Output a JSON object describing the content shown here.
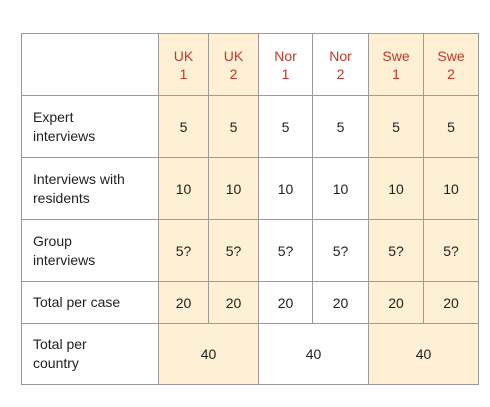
{
  "table": {
    "columns": [
      {
        "line1": "UK",
        "line2": "1",
        "highlight": true
      },
      {
        "line1": "UK",
        "line2": "2",
        "highlight": true
      },
      {
        "line1": "Nor",
        "line2": "1",
        "highlight": false
      },
      {
        "line1": "Nor",
        "line2": "2",
        "highlight": false
      },
      {
        "line1": "Swe",
        "line2": "1",
        "highlight": true
      },
      {
        "line1": "Swe",
        "line2": "2",
        "highlight": true
      }
    ],
    "rows": [
      {
        "label_line1": "Expert",
        "label_line2": "interviews",
        "values": [
          "5",
          "5",
          "5",
          "5",
          "5",
          "5"
        ]
      },
      {
        "label_line1": "Interviews with",
        "label_line2": "residents",
        "values": [
          "10",
          "10",
          "10",
          "10",
          "10",
          "10"
        ]
      },
      {
        "label_line1": "Group",
        "label_line2": "interviews",
        "values": [
          "5?",
          "5?",
          "5?",
          "5?",
          "5?",
          "5?"
        ]
      },
      {
        "label_line1": "Total per case",
        "label_line2": "",
        "values": [
          "20",
          "20",
          "20",
          "20",
          "20",
          "20"
        ]
      }
    ],
    "country_row": {
      "label_line1": "Total per",
      "label_line2": "country",
      "values": [
        "40",
        "40",
        "40"
      ]
    },
    "colors": {
      "header_text": "#c0392b",
      "highlight_fill": "#fdf0d4",
      "border": "#9a9a9a"
    }
  }
}
